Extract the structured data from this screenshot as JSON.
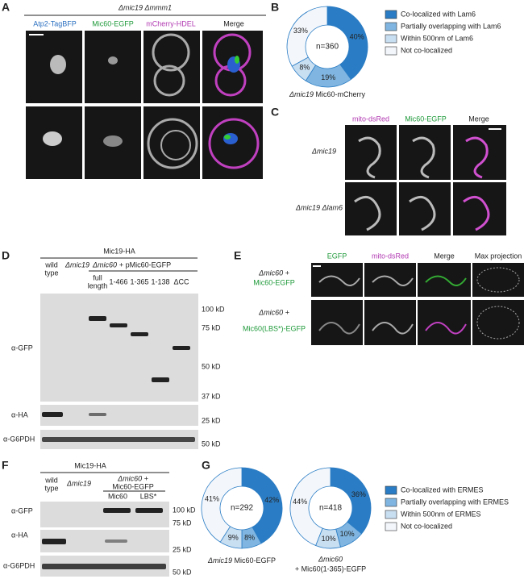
{
  "panels": {
    "a": "A",
    "b": "B",
    "c": "C",
    "d": "D",
    "e": "E",
    "f": "F",
    "g": "G"
  },
  "panel_a": {
    "title": "Δmic19 Δmmm1",
    "channels": [
      "Atp2-TagBFP",
      "Mic60-EGFP",
      "mCherry-HDEL",
      "Merge"
    ]
  },
  "panel_c": {
    "channels": [
      "mito-dsRed",
      "Mic60-EGFP",
      "Merge"
    ],
    "rows": [
      "Δmic19",
      "Δmic19 Δlam6"
    ]
  },
  "panel_d": {
    "header": "Mic19-HA",
    "wild_type": [
      "wild",
      "type"
    ],
    "mutant": "Δmic19",
    "rescue": [
      "Δmic60",
      "+ pMic60-EGFP"
    ],
    "lanes": [
      [
        "full",
        "length"
      ],
      "1-466",
      "1-365",
      "1-138",
      "ΔCC"
    ],
    "antibodies": [
      "α-GFP",
      "α-HA",
      "α-G6PDH"
    ],
    "markers": [
      "100 kD",
      "75 kD",
      "50 kD",
      "37 kD",
      "25 kD",
      "50 kD"
    ]
  },
  "panel_e": {
    "channels": [
      "EGFP",
      "mito-dsRed",
      "Merge",
      "Max projection"
    ],
    "rows": [
      [
        "Δmic60 +",
        "Mic60-EGFP"
      ],
      [
        "Δmic60 +",
        "Mic60(LBS*)-EGFP"
      ]
    ]
  },
  "panel_f": {
    "header": "Mic19-HA",
    "wild_type": [
      "wild",
      "type"
    ],
    "mutant": "Δmic19",
    "rescue": [
      "Δmic60 +",
      "Mic60-EGFP"
    ],
    "lanes": [
      "Mic60",
      "LBS*"
    ],
    "antibodies": [
      "α-GFP",
      "α-HA",
      "α-G6PDH"
    ],
    "markers": [
      "100 kD",
      "75 kD",
      "25 kD",
      "50 kD"
    ]
  },
  "chart_data": [
    {
      "type": "pie",
      "categories": [
        "Co-localized with Lam6",
        "Partially overlapping with Lam6",
        "Within 500nm of Lam6",
        "Not co-localized"
      ],
      "values": [
        40,
        19,
        8,
        33
      ],
      "value_labels": [
        "40%",
        "19%",
        "8%",
        "33%"
      ],
      "colors": [
        "#2a7cc4",
        "#7fb5e0",
        "#c8def1",
        "#f3f7fc"
      ],
      "center_label": "n=360",
      "caption": [
        "Δmic19",
        "Mic60-mCherry"
      ]
    },
    {
      "type": "pie",
      "categories": [
        "Co-localized with ERMES",
        "Partially overlapping with ERMES",
        "Within 500nm of ERMES",
        "Not co-localized"
      ],
      "values": [
        42,
        8,
        9,
        41
      ],
      "value_labels": [
        "42%",
        "8%",
        "9%",
        "41%"
      ],
      "colors": [
        "#2a7cc4",
        "#7fb5e0",
        "#c8def1",
        "#f3f7fc"
      ],
      "center_label": "n=292",
      "caption": [
        "Δmic19",
        "Mic60-EGFP"
      ]
    },
    {
      "type": "pie",
      "values": [
        36,
        10,
        10,
        44
      ],
      "value_labels": [
        "36%",
        "10%",
        "10%",
        "44%"
      ],
      "colors": [
        "#2a7cc4",
        "#7fb5e0",
        "#c8def1",
        "#f3f7fc"
      ],
      "center_label": "n=418",
      "caption": [
        "Δmic60",
        "+ Mic60(1-365)-EGFP"
      ]
    }
  ]
}
